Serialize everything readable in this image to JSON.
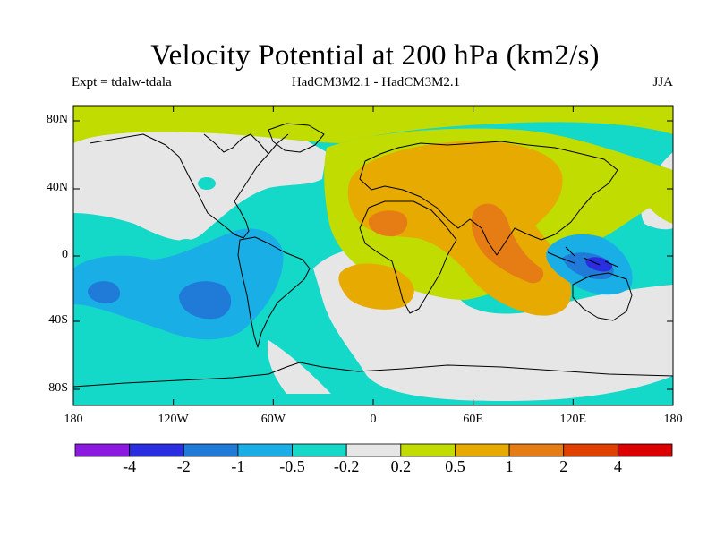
{
  "title": "Velocity Potential at 200 hPa (km2/s)",
  "subtitle_left": "Expt = tdalw-tdala",
  "subtitle_center": "HadCM3M2.1 - HadCM3M2.1",
  "subtitle_right": "JJA",
  "y_ticks": [
    "80N",
    "40N",
    "0",
    "40S",
    "80S"
  ],
  "x_ticks": [
    "180",
    "120W",
    "60W",
    "0",
    "60E",
    "120E",
    "180"
  ],
  "colorbar": {
    "labels": [
      "-4",
      "-2",
      "-1",
      "-0.5",
      "-0.2",
      "0.2",
      "0.5",
      "1",
      "2",
      "4"
    ],
    "colors": [
      "#8c1ae0",
      "#2a2ee0",
      "#1f7ad8",
      "#1aaee6",
      "#14d8c8",
      "#e6e6e6",
      "#c0dc00",
      "#e6aa00",
      "#e67c14",
      "#e04000",
      "#dc0000"
    ]
  },
  "map_colors": {
    "ocean_base": "#14d8c8",
    "neutral": "#e6e6e6",
    "light_positive": "#c0dc00",
    "positive": "#e6aa00",
    "strong_positive": "#e67c14",
    "light_negative": "#1aaee6",
    "negative": "#1f7ad8",
    "strong_negative": "#2a2ee0"
  }
}
